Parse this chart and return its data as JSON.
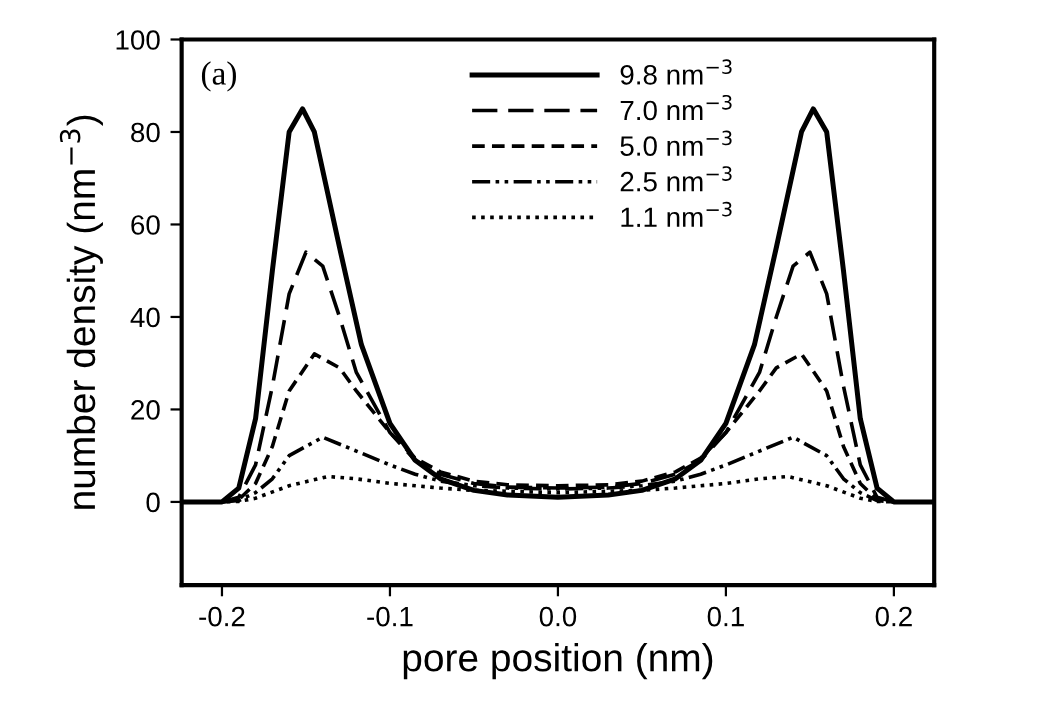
{
  "chart_data": {
    "type": "line",
    "xlabel": "pore position (nm)",
    "ylabel": "number density (nm$^{−3}$)",
    "annotations": [
      "(a)"
    ],
    "xlim": [
      -0.224,
      0.224
    ],
    "ylim": [
      -18,
      100
    ],
    "xticks": [
      -0.2,
      -0.1,
      {
        "value": 0,
        "label": "0.0"
      },
      0.1,
      0.2
    ],
    "yticks": [
      0,
      20,
      40,
      60,
      80,
      100
    ],
    "grid": false,
    "legend": "top",
    "marker": "none",
    "series": [
      {
        "name": "9.8 nm$^{−3}$",
        "color": "#000000",
        "line_style": "solid",
        "x": [
          -0.224,
          -0.2,
          -0.19,
          -0.18,
          -0.17,
          -0.16,
          -0.152,
          -0.145,
          -0.13,
          -0.117,
          -0.1,
          -0.085,
          -0.07,
          -0.05,
          -0.03,
          0,
          0.03,
          0.05,
          0.07,
          0.085,
          0.1,
          0.117,
          0.13,
          0.145,
          0.152,
          0.16,
          0.17,
          0.18,
          0.19,
          0.2,
          0.224
        ],
        "values": [
          0,
          0,
          3,
          18,
          50,
          80,
          85,
          80,
          55,
          34,
          17,
          9,
          5,
          2.5,
          1.5,
          1,
          1.5,
          2.5,
          5,
          9,
          17,
          34,
          55,
          80,
          85,
          80,
          50,
          18,
          3,
          0,
          0
        ]
      },
      {
        "name": "7.0 nm$^{−3}$",
        "color": "#000000",
        "line_style": "long dashed",
        "x": [
          -0.224,
          -0.2,
          -0.19,
          -0.18,
          -0.17,
          -0.16,
          -0.15,
          -0.14,
          -0.13,
          -0.12,
          -0.1,
          -0.085,
          -0.07,
          -0.05,
          -0.03,
          0,
          0.03,
          0.05,
          0.07,
          0.085,
          0.1,
          0.12,
          0.13,
          0.14,
          0.15,
          0.16,
          0.17,
          0.18,
          0.19,
          0.2,
          0.224
        ],
        "values": [
          0,
          0,
          1,
          8,
          25,
          45,
          54,
          51,
          40,
          28,
          15,
          9,
          6,
          4,
          3.2,
          3,
          3.2,
          4,
          6,
          9,
          15,
          28,
          40,
          51,
          54,
          45,
          25,
          8,
          1,
          0,
          0
        ]
      },
      {
        "name": "5.0 nm$^{−3}$",
        "color": "#000000",
        "line_style": "dashed",
        "x": [
          -0.224,
          -0.2,
          -0.19,
          -0.18,
          -0.17,
          -0.16,
          -0.145,
          -0.13,
          -0.12,
          -0.1,
          -0.085,
          -0.07,
          -0.05,
          -0.03,
          0,
          0.03,
          0.05,
          0.07,
          0.085,
          0.1,
          0.12,
          0.13,
          0.145,
          0.16,
          0.17,
          0.18,
          0.19,
          0.2,
          0.224
        ],
        "values": [
          0,
          0,
          0.5,
          4,
          12,
          24,
          32,
          29,
          24,
          15,
          9.5,
          6.5,
          4.5,
          3.7,
          3.5,
          3.7,
          4.5,
          6.5,
          9.5,
          15,
          24,
          29,
          32,
          24,
          12,
          4,
          0.5,
          0,
          0
        ]
      },
      {
        "name": "2.5 nm$^{−3}$",
        "color": "#000000",
        "line_style": "dashdotdotted",
        "x": [
          -0.224,
          -0.2,
          -0.19,
          -0.18,
          -0.17,
          -0.16,
          -0.14,
          -0.12,
          -0.1,
          -0.085,
          -0.07,
          -0.05,
          -0.03,
          0,
          0.03,
          0.05,
          0.07,
          0.085,
          0.1,
          0.12,
          0.14,
          0.16,
          0.17,
          0.18,
          0.19,
          0.2,
          0.224
        ],
        "values": [
          0,
          0,
          0.3,
          2,
          5,
          10,
          14,
          11,
          8,
          6,
          4.5,
          3.5,
          3,
          2.8,
          3,
          3.5,
          4.5,
          6,
          8,
          11,
          14,
          10,
          5,
          2,
          0.3,
          0,
          0
        ]
      },
      {
        "name": "1.1 nm$^{−3}$",
        "color": "#000000",
        "line_style": "dotted",
        "x": [
          -0.224,
          -0.2,
          -0.19,
          -0.18,
          -0.16,
          -0.137,
          -0.12,
          -0.1,
          -0.07,
          -0.05,
          0,
          0.05,
          0.07,
          0.1,
          0.12,
          0.137,
          0.16,
          0.18,
          0.19,
          0.2,
          0.224
        ],
        "values": [
          0,
          0,
          0.1,
          0.8,
          3.5,
          5.5,
          5,
          4,
          3,
          2.5,
          2,
          2.5,
          3,
          4,
          5,
          5.5,
          3.5,
          0.8,
          0.1,
          0,
          0
        ]
      }
    ]
  }
}
